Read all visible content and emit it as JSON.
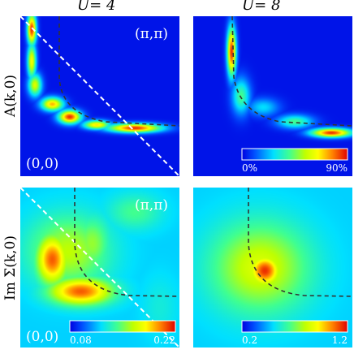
{
  "chart_data": [
    {
      "type": "heatmap",
      "id": "A_U4",
      "title": "U= 4",
      "ylabel": "A(k,0)",
      "corner_labels": {
        "bottom_left": "(0,0)",
        "top_right": "(π,π)"
      },
      "xlim": [
        0,
        1
      ],
      "ylim": [
        0,
        1
      ],
      "fermi_surface_guide": "dashed",
      "diagonal_guide": "dashed-white",
      "field": {
        "base": 0.03,
        "blobs": [
          {
            "x": 0.07,
            "y": 0.92,
            "value": 0.95,
            "sx": 0.02,
            "sy": 0.07
          },
          {
            "x": 0.07,
            "y": 0.72,
            "value": 0.7,
            "sx": 0.02,
            "sy": 0.08
          },
          {
            "x": 0.09,
            "y": 0.57,
            "value": 0.65,
            "sx": 0.03,
            "sy": 0.05
          },
          {
            "x": 0.2,
            "y": 0.45,
            "value": 0.8,
            "sx": 0.05,
            "sy": 0.03
          },
          {
            "x": 0.31,
            "y": 0.37,
            "value": 0.95,
            "sx": 0.05,
            "sy": 0.03
          },
          {
            "x": 0.48,
            "y": 0.32,
            "value": 0.75,
            "sx": 0.06,
            "sy": 0.02
          },
          {
            "x": 0.72,
            "y": 0.3,
            "value": 0.95,
            "sx": 0.12,
            "sy": 0.02
          }
        ]
      }
    },
    {
      "type": "heatmap",
      "id": "A_U8",
      "title": "U= 8",
      "xlim": [
        0,
        1
      ],
      "ylim": [
        0,
        1
      ],
      "fermi_surface_guide": "dashed",
      "colorbar": {
        "min_label": "0%",
        "max_label": "90%"
      },
      "field": {
        "base": 0.03,
        "blobs": [
          {
            "x": 0.24,
            "y": 0.78,
            "value": 0.95,
            "sx": 0.02,
            "sy": 0.11
          },
          {
            "x": 0.3,
            "y": 0.5,
            "value": 0.45,
            "sx": 0.04,
            "sy": 0.08
          },
          {
            "x": 0.44,
            "y": 0.43,
            "value": 0.3,
            "sx": 0.07,
            "sy": 0.04
          },
          {
            "x": 0.64,
            "y": 0.34,
            "value": 0.45,
            "sx": 0.08,
            "sy": 0.03
          },
          {
            "x": 0.87,
            "y": 0.27,
            "value": 0.95,
            "sx": 0.09,
            "sy": 0.02
          }
        ]
      }
    },
    {
      "type": "heatmap",
      "id": "Sigma_U4",
      "ylabel": "Im Σ(k,0)",
      "corner_labels": {
        "bottom_left": "(0,0)",
        "top_right": "(π,π)"
      },
      "xlim": [
        0,
        1
      ],
      "ylim": [
        0,
        1
      ],
      "fermi_surface_guide": "dashed",
      "diagonal_guide": "dashed-white",
      "colorbar": {
        "min_label": "0.08",
        "max_label": "0.22"
      },
      "field": {
        "base": 0.28,
        "blobs": [
          {
            "x": 0.3,
            "y": 0.6,
            "value": 0.6,
            "sx": 0.18,
            "sy": 0.16
          },
          {
            "x": 0.2,
            "y": 0.55,
            "value": 0.9,
            "sx": 0.07,
            "sy": 0.11
          },
          {
            "x": 0.38,
            "y": 0.35,
            "value": 0.9,
            "sx": 0.14,
            "sy": 0.06
          },
          {
            "x": 0.45,
            "y": 0.65,
            "value": 0.55,
            "sx": 0.08,
            "sy": 0.12
          },
          {
            "x": 0.72,
            "y": 0.85,
            "value": 0.45,
            "sx": 0.12,
            "sy": 0.08
          },
          {
            "x": 0.88,
            "y": 0.25,
            "value": 0.35,
            "sx": 0.08,
            "sy": 0.14
          },
          {
            "x": 0.05,
            "y": 0.2,
            "value": 0.25,
            "sx": 0.06,
            "sy": 0.1
          }
        ]
      }
    },
    {
      "type": "heatmap",
      "id": "Sigma_U8",
      "xlim": [
        0,
        1
      ],
      "ylim": [
        0,
        1
      ],
      "fermi_surface_guide": "dashed",
      "colorbar": {
        "min_label": "0.2",
        "max_label": "1.2"
      },
      "field": {
        "base": 0.28,
        "blobs": [
          {
            "x": 0.42,
            "y": 0.5,
            "value": 0.65,
            "sx": 0.22,
            "sy": 0.2
          },
          {
            "x": 0.45,
            "y": 0.48,
            "value": 0.95,
            "sx": 0.07,
            "sy": 0.07
          },
          {
            "x": 0.28,
            "y": 0.48,
            "value": 0.35,
            "sx": 0.1,
            "sy": 0.14
          }
        ]
      }
    }
  ],
  "colors": {
    "stops": [
      "#0000e0",
      "#0040ff",
      "#00a0ff",
      "#00ffff",
      "#40ff80",
      "#c0ff00",
      "#ffff00",
      "#ff8000",
      "#ff0000",
      "#b00000"
    ]
  }
}
